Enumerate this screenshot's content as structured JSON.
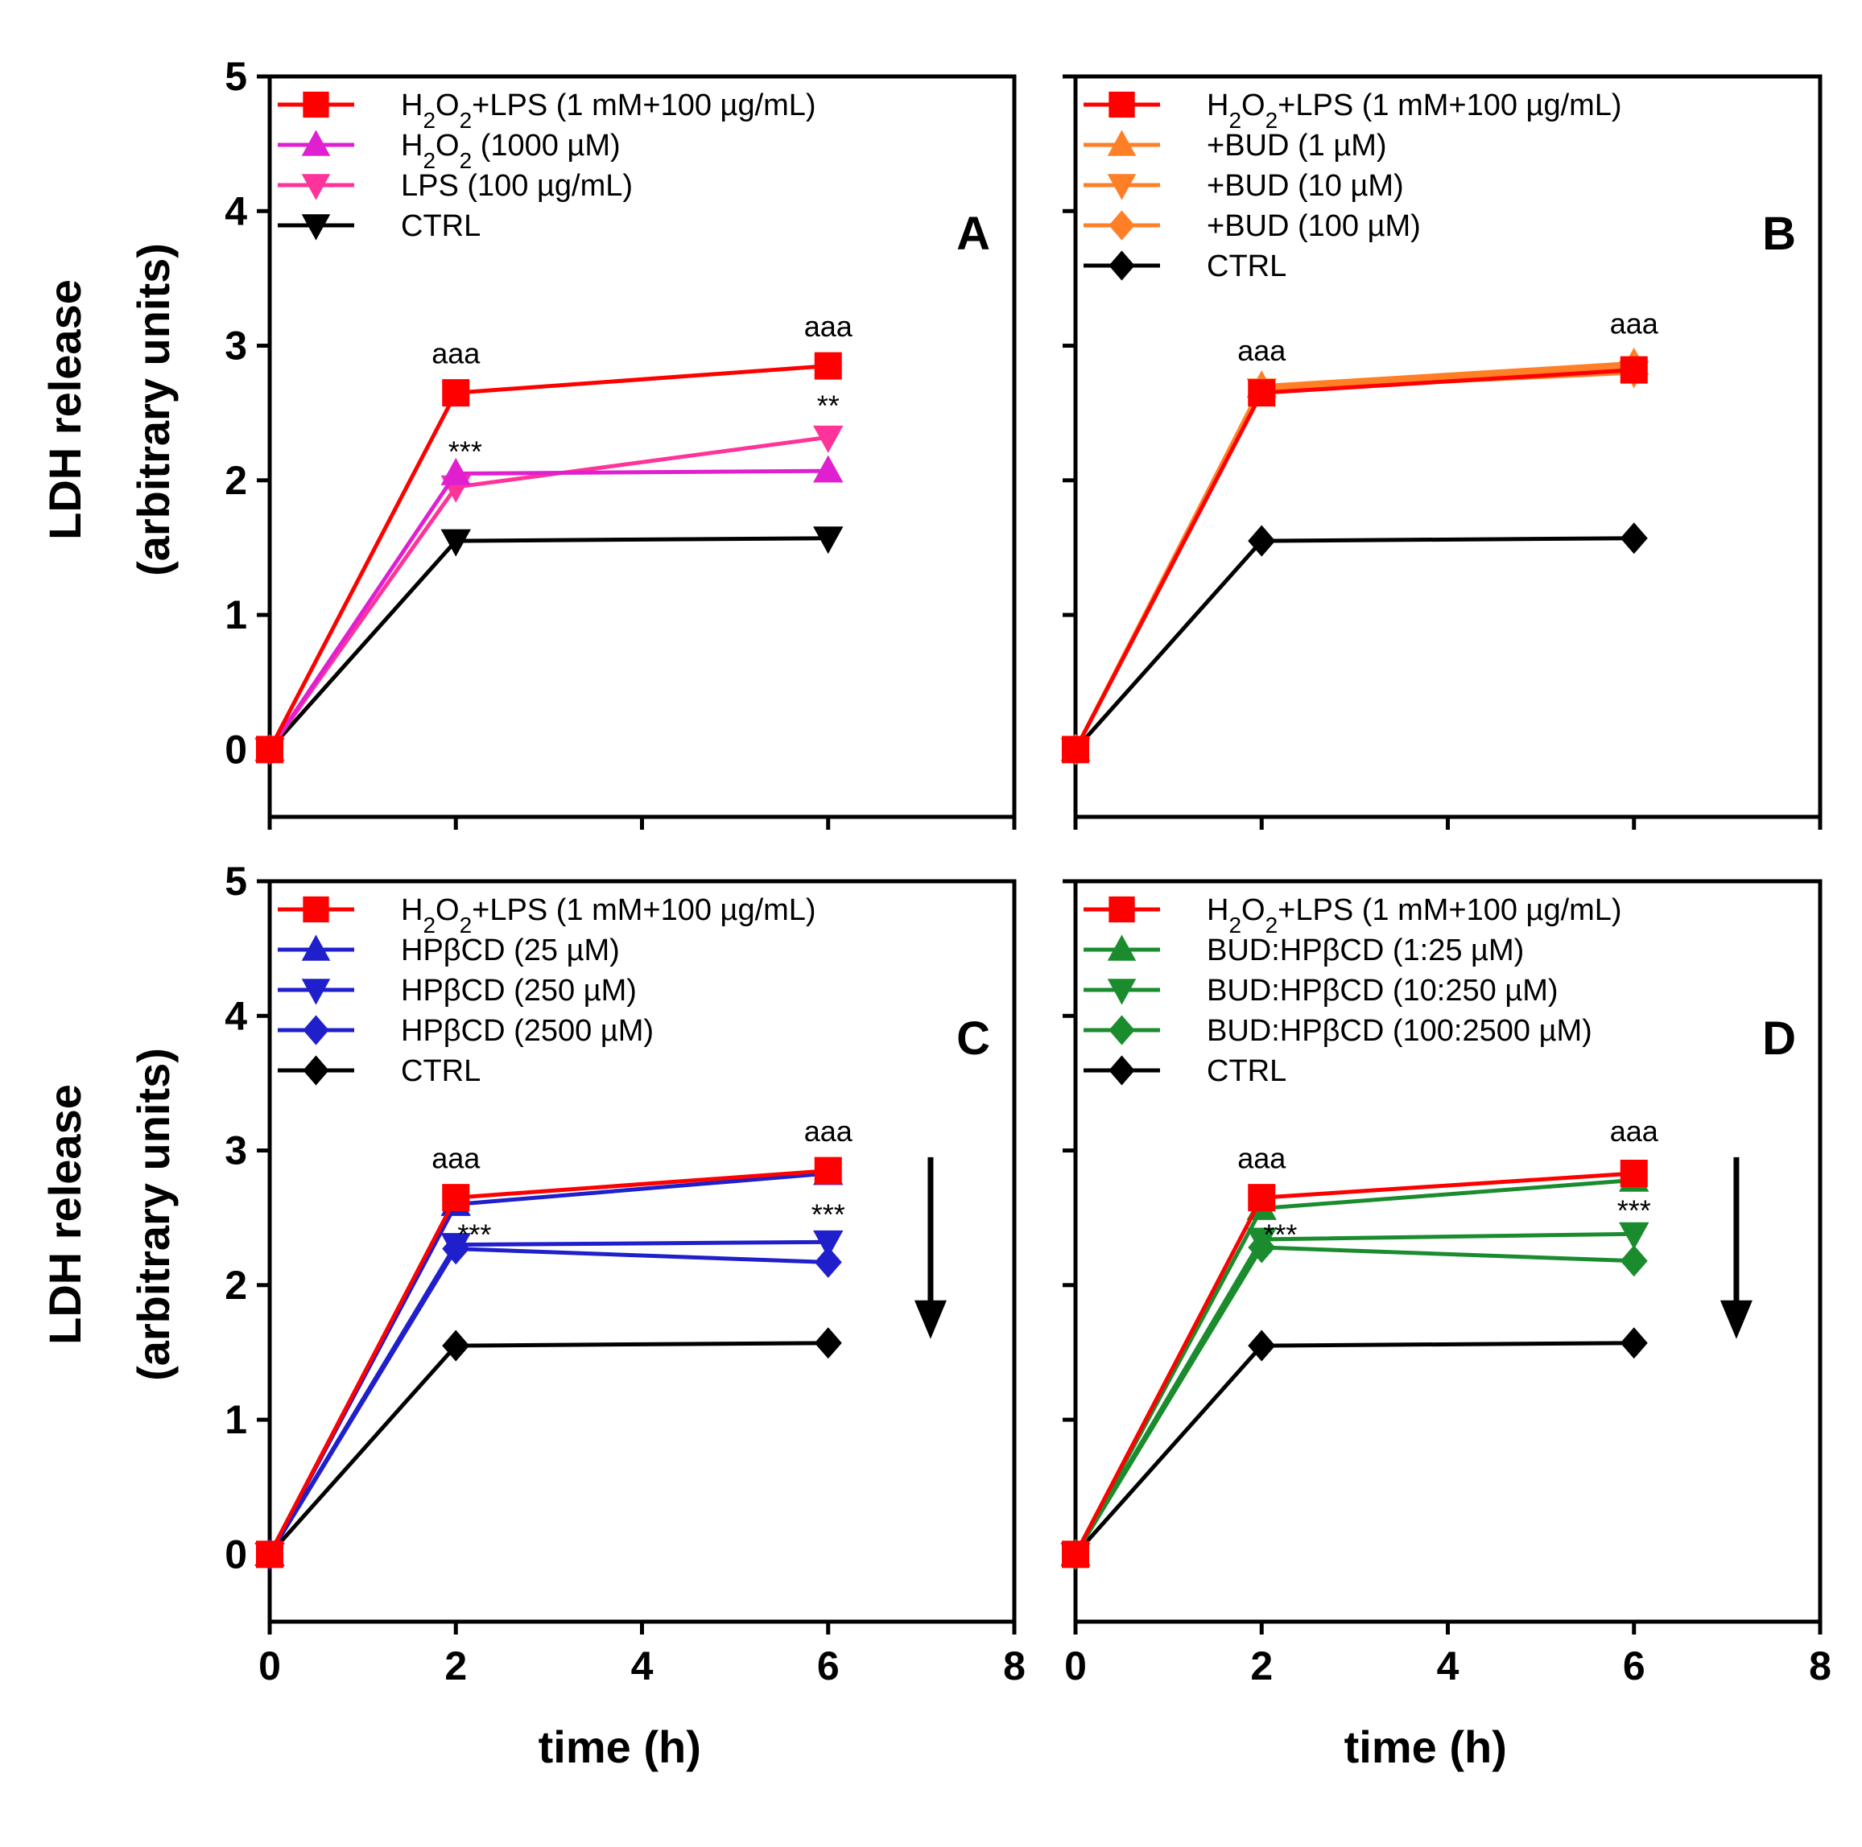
{
  "chart_data": {
    "type": "line",
    "x_axis": {
      "label": "time (h)",
      "range": [
        0,
        8
      ],
      "ticks": [
        0,
        2,
        4,
        6,
        8
      ]
    },
    "y_axis": {
      "label_line1": "LDH release",
      "label_line2": "(arbitrary units)",
      "range": [
        -0.5,
        5
      ],
      "ticks": [
        0,
        1,
        2,
        3,
        4,
        5
      ]
    },
    "panels": [
      {
        "letter": "A",
        "series": [
          {
            "name": "H2O2+LPS (1 mM+100 µg/mL)",
            "label_parts": [
              [
                "H",
                ""
              ],
              [
                "2",
                "sub"
              ],
              [
                "O",
                ""
              ],
              [
                "2",
                "sub"
              ],
              [
                "+LPS (1 mM+100 µg/mL)",
                ""
              ]
            ],
            "color": "#ff0000",
            "marker": "square",
            "x": [
              0,
              2,
              6
            ],
            "y": [
              0,
              2.65,
              2.85
            ]
          },
          {
            "name": "H2O2 (1000 µM)",
            "label_parts": [
              [
                "H",
                ""
              ],
              [
                "2",
                "sub"
              ],
              [
                "O",
                ""
              ],
              [
                "2",
                "sub"
              ],
              [
                " (1000 µM)",
                ""
              ]
            ],
            "color": "#e020d0",
            "marker": "triangle-up",
            "x": [
              0,
              2,
              6
            ],
            "y": [
              0,
              2.05,
              2.07
            ]
          },
          {
            "name": "LPS (100 µg/mL)",
            "label_parts": [
              [
                "LPS (100 µg/mL)",
                ""
              ]
            ],
            "color": "#ff3399",
            "marker": "triangle-down",
            "x": [
              0,
              2,
              6
            ],
            "y": [
              0,
              1.95,
              2.32
            ]
          },
          {
            "name": "CTRL",
            "label_parts": [
              [
                "CTRL",
                ""
              ]
            ],
            "color": "#000000",
            "marker": "triangle-down",
            "x": [
              0,
              2,
              6
            ],
            "y": [
              0,
              1.55,
              1.57
            ]
          }
        ],
        "annotations": [
          {
            "text": "aaa",
            "x": 2,
            "y": 2.87
          },
          {
            "text": "aaa",
            "x": 6,
            "y": 3.07
          },
          {
            "text": "***",
            "x": 2.1,
            "y": 2.14
          },
          {
            "text": "**",
            "x": 6,
            "y": 2.48
          }
        ]
      },
      {
        "letter": "B",
        "series": [
          {
            "name": "H2O2+LPS (1 mM+100 µg/mL)",
            "label_parts": [
              [
                "H",
                ""
              ],
              [
                "2",
                "sub"
              ],
              [
                "O",
                ""
              ],
              [
                "2",
                "sub"
              ],
              [
                "+LPS (1 mM+100 µg/mL)",
                ""
              ]
            ],
            "color": "#ff0000",
            "marker": "square",
            "x": [
              0,
              2,
              6
            ],
            "y": [
              0,
              2.65,
              2.82
            ]
          },
          {
            "name": "+BUD (1 µM)",
            "label_parts": [
              [
                "+BUD (1 µM)",
                ""
              ]
            ],
            "color": "#ff7f27",
            "marker": "triangle-up",
            "x": [
              0,
              2,
              6
            ],
            "y": [
              0,
              2.7,
              2.87
            ]
          },
          {
            "name": "+BUD (10 µM)",
            "label_parts": [
              [
                "+BUD (10 µM)",
                ""
              ]
            ],
            "color": "#ff7f27",
            "marker": "triangle-down",
            "x": [
              0,
              2,
              6
            ],
            "y": [
              0,
              2.67,
              2.8
            ]
          },
          {
            "name": "+BUD (100 µM)",
            "label_parts": [
              [
                "+BUD (100 µM)",
                ""
              ]
            ],
            "color": "#ff7f27",
            "marker": "diamond",
            "x": [
              0,
              2,
              6
            ],
            "y": [
              0,
              2.68,
              2.84
            ]
          },
          {
            "name": "CTRL",
            "label_parts": [
              [
                "CTRL",
                ""
              ]
            ],
            "color": "#000000",
            "marker": "diamond",
            "x": [
              0,
              2,
              6
            ],
            "y": [
              0,
              1.55,
              1.57
            ]
          }
        ],
        "annotations": [
          {
            "text": "aaa",
            "x": 2,
            "y": 2.89
          },
          {
            "text": "aaa",
            "x": 6,
            "y": 3.09
          }
        ]
      },
      {
        "letter": "C",
        "series": [
          {
            "name": "H2O2+LPS (1 mM+100 µg/mL)",
            "label_parts": [
              [
                "H",
                ""
              ],
              [
                "2",
                "sub"
              ],
              [
                "O",
                ""
              ],
              [
                "2",
                "sub"
              ],
              [
                "+LPS (1 mM+100 µg/mL)",
                ""
              ]
            ],
            "color": "#ff0000",
            "marker": "square",
            "x": [
              0,
              2,
              6
            ],
            "y": [
              0,
              2.65,
              2.85
            ]
          },
          {
            "name": "HPβCD (25 µM)",
            "label_parts": [
              [
                "HPβCD (25 µM)",
                ""
              ]
            ],
            "color": "#1f1fcc",
            "marker": "triangle-up",
            "x": [
              0,
              2,
              6
            ],
            "y": [
              0,
              2.6,
              2.83
            ]
          },
          {
            "name": "HPβCD (250 µM)",
            "label_parts": [
              [
                "HPβCD (250 µM)",
                ""
              ]
            ],
            "color": "#1f1fcc",
            "marker": "triangle-down",
            "x": [
              0,
              2,
              6
            ],
            "y": [
              0,
              2.3,
              2.32
            ]
          },
          {
            "name": "HPβCD (2500 µM)",
            "label_parts": [
              [
                "HPβCD (2500 µM)",
                ""
              ]
            ],
            "color": "#1f1fcc",
            "marker": "diamond",
            "x": [
              0,
              2,
              6
            ],
            "y": [
              0,
              2.27,
              2.17
            ]
          },
          {
            "name": "CTRL",
            "label_parts": [
              [
                "CTRL",
                ""
              ]
            ],
            "color": "#000000",
            "marker": "diamond",
            "x": [
              0,
              2,
              6
            ],
            "y": [
              0,
              1.55,
              1.57
            ]
          }
        ],
        "annotations": [
          {
            "text": "aaa",
            "x": 2,
            "y": 2.87
          },
          {
            "text": "aaa",
            "x": 6,
            "y": 3.07
          },
          {
            "text": "***",
            "x": 2.2,
            "y": 2.3
          },
          {
            "text": "***",
            "x": 6,
            "y": 2.45
          }
        ],
        "arrow": {
          "x": 7.1,
          "y_from": 2.95,
          "y_to": 1.6
        }
      },
      {
        "letter": "D",
        "series": [
          {
            "name": "H2O2+LPS (1 mM+100 µg/mL)",
            "label_parts": [
              [
                "H",
                ""
              ],
              [
                "2",
                "sub"
              ],
              [
                "O",
                ""
              ],
              [
                "2",
                "sub"
              ],
              [
                "+LPS (1 mM+100 µg/mL)",
                ""
              ]
            ],
            "color": "#ff0000",
            "marker": "square",
            "x": [
              0,
              2,
              6
            ],
            "y": [
              0,
              2.65,
              2.83
            ]
          },
          {
            "name": "BUD:HPβCD (1:25 µM)",
            "label_parts": [
              [
                "BUD:HPβCD (1:25 µM)",
                ""
              ]
            ],
            "color": "#1a8c2e",
            "marker": "triangle-up",
            "x": [
              0,
              2,
              6
            ],
            "y": [
              0,
              2.57,
              2.78
            ]
          },
          {
            "name": "BUD:HPβCD (10:250 µM)",
            "label_parts": [
              [
                "BUD:HPβCD (10:250 µM)",
                ""
              ]
            ],
            "color": "#1a8c2e",
            "marker": "triangle-down",
            "x": [
              0,
              2,
              6
            ],
            "y": [
              0,
              2.34,
              2.38
            ]
          },
          {
            "name": "BUD:HPβCD (100:2500 µM)",
            "label_parts": [
              [
                "BUD:HPβCD (100:2500 µM)",
                ""
              ]
            ],
            "color": "#1a8c2e",
            "marker": "diamond",
            "x": [
              0,
              2,
              6
            ],
            "y": [
              0,
              2.28,
              2.18
            ]
          },
          {
            "name": "CTRL",
            "label_parts": [
              [
                "CTRL",
                ""
              ]
            ],
            "color": "#000000",
            "marker": "diamond",
            "x": [
              0,
              2,
              6
            ],
            "y": [
              0,
              1.55,
              1.57
            ]
          }
        ],
        "annotations": [
          {
            "text": "aaa",
            "x": 2,
            "y": 2.87
          },
          {
            "text": "aaa",
            "x": 6,
            "y": 3.07
          },
          {
            "text": "***",
            "x": 2.2,
            "y": 2.3
          },
          {
            "text": "***",
            "x": 6,
            "y": 2.48
          }
        ],
        "arrow": {
          "x": 7.1,
          "y_from": 2.95,
          "y_to": 1.6
        }
      }
    ]
  }
}
